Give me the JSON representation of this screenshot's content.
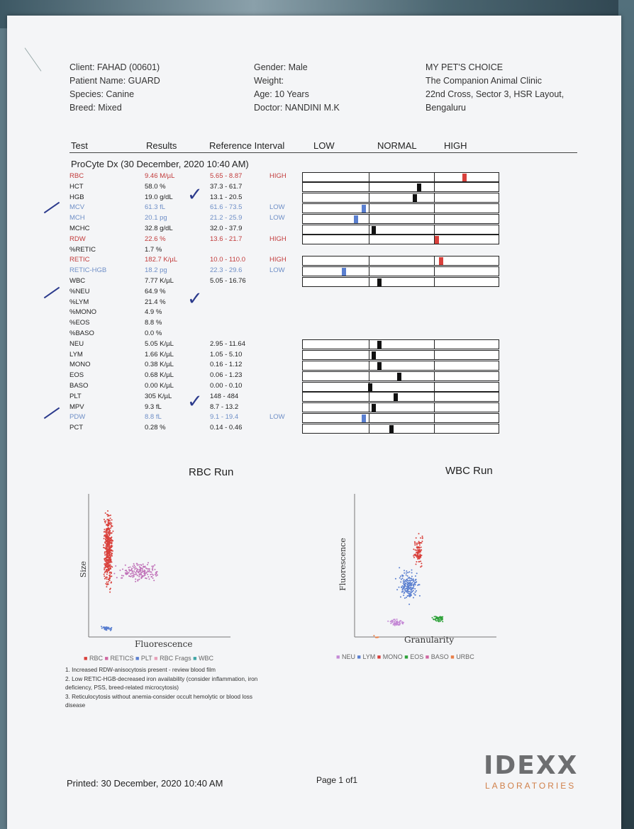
{
  "header": {
    "client": "Client: FAHAD (00601)",
    "patient": "Patient Name: GUARD",
    "species": "Species: Canine",
    "breed": "Breed: Mixed",
    "gender": "Gender: Male",
    "weight": "Weight:",
    "age": "Age: 10 Years",
    "doctor": "Doctor: NANDINI M.K",
    "clinic_name": "MY PET'S CHOICE",
    "clinic_sub": "The Companion Animal Clinic",
    "clinic_addr1": "22nd Cross, Sector 3, HSR Layout,",
    "clinic_addr2": "Bengaluru"
  },
  "columns": {
    "test": "Test",
    "results": "Results",
    "reference": "Reference Interval",
    "low": "LOW",
    "normal": "NORMAL",
    "high": "HIGH"
  },
  "section_title": "ProCyte Dx (30 December, 2020 10:40 AM)",
  "rows": [
    {
      "test": "RBC",
      "result": "9.46 M/µL",
      "ref": "5.65 - 8.87",
      "flag": "HIGH",
      "status": "high",
      "level": 0.82
    },
    {
      "test": "HCT",
      "result": "58.0 %",
      "ref": "37.3 - 61.7",
      "flag": "",
      "status": "norm",
      "level": 0.59
    },
    {
      "test": "HGB",
      "result": "19.0 g/dL",
      "ref": "13.1 - 20.5",
      "flag": "",
      "status": "norm",
      "level": 0.57
    },
    {
      "test": "MCV",
      "result": "61.3 fL",
      "ref": "61.6 - 73.5",
      "flag": "LOW",
      "status": "low",
      "level": 0.31
    },
    {
      "test": "MCH",
      "result": "20.1 pg",
      "ref": "21.2 - 25.9",
      "flag": "LOW",
      "status": "low",
      "level": 0.27
    },
    {
      "test": "MCHC",
      "result": "32.8 g/dL",
      "ref": "32.0 - 37.9",
      "flag": "",
      "status": "norm",
      "level": 0.36
    },
    {
      "test": "RDW",
      "result": "22.6 %",
      "ref": "13.6 - 21.7",
      "flag": "HIGH",
      "status": "high",
      "level": 0.68
    },
    {
      "test": "%RETIC",
      "result": "1.7 %",
      "ref": "",
      "flag": "",
      "status": "norm",
      "level": null
    },
    {
      "test": "RETIC",
      "result": "182.7 K/µL",
      "ref": "10.0 - 110.0",
      "flag": "HIGH",
      "status": "high",
      "level": 0.7
    },
    {
      "test": "RETIC-HGB",
      "result": "18.2 pg",
      "ref": "22.3 - 29.6",
      "flag": "LOW",
      "status": "low",
      "level": 0.21
    },
    {
      "test": "WBC",
      "result": "7.77 K/µL",
      "ref": "5.05 - 16.76",
      "flag": "",
      "status": "norm",
      "level": 0.39
    },
    {
      "test": "%NEU",
      "result": "64.9 %",
      "ref": "",
      "flag": "",
      "status": "norm",
      "level": null
    },
    {
      "test": "%LYM",
      "result": "21.4 %",
      "ref": "",
      "flag": "",
      "status": "norm",
      "level": null
    },
    {
      "test": "%MONO",
      "result": "4.9 %",
      "ref": "",
      "flag": "",
      "status": "norm",
      "level": null
    },
    {
      "test": "%EOS",
      "result": "8.8 %",
      "ref": "",
      "flag": "",
      "status": "norm",
      "level": null
    },
    {
      "test": "%BASO",
      "result": "0.0 %",
      "ref": "",
      "flag": "",
      "status": "norm",
      "level": null
    },
    {
      "test": "NEU",
      "result": "5.05 K/µL",
      "ref": "2.95 - 11.64",
      "flag": "",
      "status": "norm",
      "level": 0.39
    },
    {
      "test": "LYM",
      "result": "1.66 K/µL",
      "ref": "1.05 - 5.10",
      "flag": "",
      "status": "norm",
      "level": 0.36
    },
    {
      "test": "MONO",
      "result": "0.38 K/µL",
      "ref": "0.16 - 1.12",
      "flag": "",
      "status": "norm",
      "level": 0.39
    },
    {
      "test": "EOS",
      "result": "0.68 K/µL",
      "ref": "0.06 - 1.23",
      "flag": "",
      "status": "norm",
      "level": 0.49
    },
    {
      "test": "BASO",
      "result": "0.00 K/µL",
      "ref": "0.00 - 0.10",
      "flag": "",
      "status": "norm",
      "level": 0.34
    },
    {
      "test": "PLT",
      "result": "305 K/µL",
      "ref": "148 - 484",
      "flag": "",
      "status": "norm",
      "level": 0.47
    },
    {
      "test": "MPV",
      "result": "9.3 fL",
      "ref": "8.7 - 13.2",
      "flag": "",
      "status": "norm",
      "level": 0.36
    },
    {
      "test": "PDW",
      "result": "8.8 fL",
      "ref": "9.1 - 19.4",
      "flag": "LOW",
      "status": "low",
      "level": 0.31
    },
    {
      "test": "PCT",
      "result": "0.28 %",
      "ref": "0.14 - 0.46",
      "flag": "",
      "status": "norm",
      "level": 0.45
    }
  ],
  "plots": {
    "rbc_title": "RBC Run",
    "rbc_x": "Fluorescence",
    "rbc_y": "Size",
    "rbc_legend": [
      "RBC",
      "RETICS",
      "PLT",
      "RBC Frags",
      "WBC"
    ],
    "wbc_title": "WBC Run",
    "wbc_x": "Granularity",
    "wbc_y": "Fluorescence",
    "wbc_legend": [
      "NEU",
      "LYM",
      "MONO",
      "EOS",
      "BASO",
      "URBC"
    ]
  },
  "notes": [
    "1. Increased RDW-anisocytosis present - review blood film",
    "2. Low RETIC-HGB-decreased iron availability (consider inflammation, iron",
    "deficiency, PSS, breed-related microcytosis)",
    "3. Reticulocytosis without anemia-consider occult hemolytic or blood loss",
    "disease"
  ],
  "footer": {
    "printed": "Printed: 30 December, 2020 10:40 AM",
    "page": "Page 1 of1",
    "logo_text": "IDEXX",
    "logo_sub": "LABORATORIES"
  },
  "colors": {
    "high": "#d9403b",
    "low": "#5a7fd0",
    "normal": "#111111",
    "ink": "#2b3a8c"
  }
}
